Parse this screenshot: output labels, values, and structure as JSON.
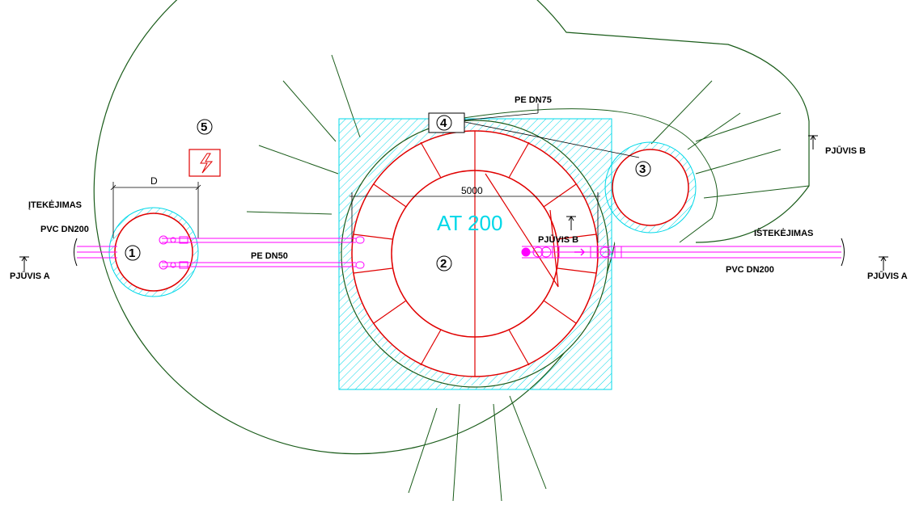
{
  "labels": {
    "inlet_title": "ĮTEKĖJIMAS",
    "inlet_pipe": "PVC DN200",
    "outlet_title": "IŠTEKĖJIMAS",
    "outlet_pipe": "PVC DN200",
    "section_a_left": "PJŪVIS A",
    "section_a_right": "PJŪVIS A",
    "section_b_right": "PJŪVIS B",
    "section_b_center": "PJŪVIS B",
    "pe_dn50": "PE DN50",
    "pe_dn75": "PE DN75",
    "tank_name": "AT 200",
    "dimension_d": "D",
    "dimension_5000": "5000"
  },
  "markers": {
    "m1": "1",
    "m2": "2",
    "m3": "3",
    "m4": "4",
    "m5": "5"
  },
  "colors": {
    "outline": "#1a5c1a",
    "tank": "#e00000",
    "hatch": "#00d8e8",
    "pipe": "#ff00ff",
    "text": "#000000"
  },
  "icons": {
    "electric_box": "lightning-bolt-icon"
  }
}
